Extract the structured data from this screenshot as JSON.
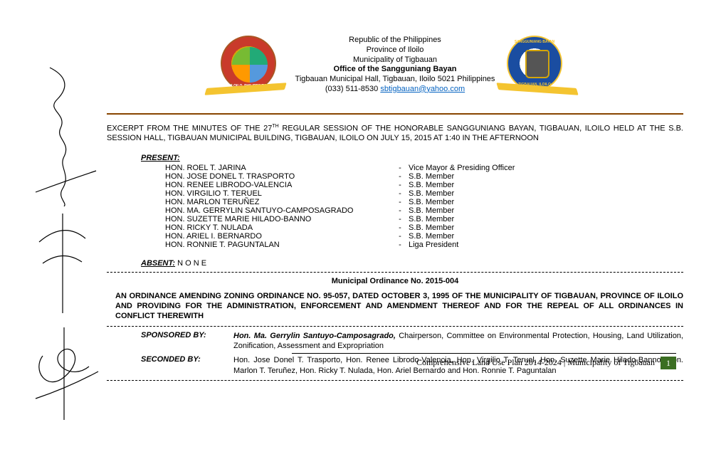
{
  "header": {
    "line1": "Republic of the Philippines",
    "line2": "Province of Iloilo",
    "line3": "Municipality of Tigbauan",
    "line4": "Office of the Sangguniang Bayan",
    "line5": "Tigbauan Municipal Hall, Tigbauan, Iloilo 5021 Philippines",
    "phone": "(033) 511-8530 ",
    "email": "sbtigbauan@yahoo.com",
    "seal_left_text": "ILOILO, PHILIPPINES",
    "seal_right_top": "SANGGUNIANG BAYAN",
    "seal_right_bottom": "TIGBAUAN, ILOILO"
  },
  "excerpt": {
    "pre": "EXCERPT FROM THE MINUTES OF THE 27",
    "sup": "TH",
    "post": "  REGULAR SESSION OF THE HONORABLE SANGGUNIANG  BAYAN, TIGBAUAN, ILOILO HELD AT THE S.B. SESSION HALL, TIGBAUAN MUNICIPAL BUILDING, TIGBAUAN, ILOILO ON JULY 15, 2015 AT 1:40 IN THE AFTERNOON"
  },
  "present_label": "PRESENT:",
  "members": [
    {
      "name": "HON.  ROEL T. JARINA",
      "role": "Vice Mayor & Presiding Officer"
    },
    {
      "name": "HON. JOSE DONEL T. TRASPORTO",
      "role": "S.B. Member"
    },
    {
      "name": "HON. RENEE LIBRODO-VALENCIA",
      "role": "S.B. Member"
    },
    {
      "name": "  HON. VIRGILIO T. TERUEL",
      "role": "S.B. Member"
    },
    {
      "name": "  HON. MARLON TERUÑEZ",
      "role": "S.B. Member"
    },
    {
      "name": "  HON. MA. GERRYLIN SANTUYO-CAMPOSAGRADO",
      "role": "S.B. Member"
    },
    {
      "name": "  HON. SUZETTE MARIE HILADO-BANNO",
      "role": "S.B. Member"
    },
    {
      "name": "  HON. RICKY T. NULADA",
      "role": "S.B. Member"
    },
    {
      "name": "  HON. ARIEL I. BERNARDO",
      "role": "S.B. Member"
    },
    {
      "name": "  HON. RONNIE T. PAGUNTALAN",
      "role": "Liga President"
    }
  ],
  "absent_label": "ABSENT:",
  "absent_value": " N O N E",
  "ordinance_no": "Municipal Ordinance No. 2015-004",
  "ordinance_title": "AN ORDINANCE AMENDING ZONING ORDINANCE NO. 95-057, DATED OCTOBER 3, 1995 OF THE MUNICIPALITY OF TIGBAUAN, PROVINCE OF ILOILO AND PROVIDING FOR THE ADMINISTRATION, ENFORCEMENT AND AMENDMENT THEREOF AND FOR THE REPEAL OF ALL ORDINANCES IN CONFLICT THEREWITH",
  "sponsored_label": "SPONSORED BY:",
  "sponsored_name": "Hon. Ma. Gerrylin Santuyo-Camposagrado,",
  "sponsored_rest": " Chairperson, Committee on Environmental Protection, Housing, Land Utilization, Zonification, Assessment and Expropriation",
  "seconded_label": "SECONDED BY:",
  "seconded_value": "Hon. Jose Donel T. Trasporto, Hon. Renee Librodo-Valencia, Hon. Virgilio T. Teruel, Hon. Suzette Marie Hilado-Banno, Hon. Marlon T. Teruñez, Hon. Ricky T. Nulada, Hon. Ariel Bernardo and Hon. Ronnie T. Paguntalan",
  "footer": {
    "text": "Comprehensive Land Use Plan 2014-2024  |  Municipality of Tigbauan",
    "page": "1"
  }
}
